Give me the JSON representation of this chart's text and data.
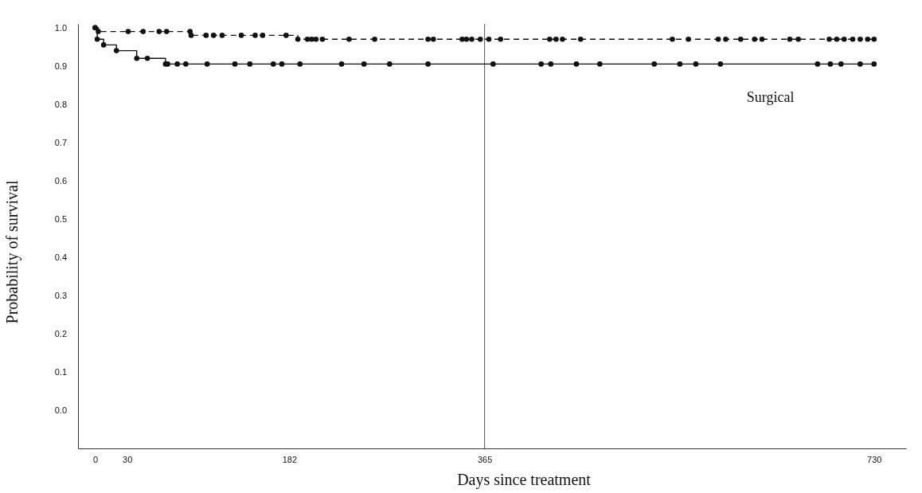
{
  "chart_data": {
    "type": "step",
    "xlabel": "Days since treatment",
    "ylabel": "Probability of survival",
    "xlim": [
      -16,
      760
    ],
    "xticks": [
      0,
      30,
      182,
      365,
      730
    ],
    "ylim": [
      -0.1,
      1.01
    ],
    "yticks": [
      {
        "value": 0,
        "label": "0.0"
      },
      0.1,
      0.2,
      0.3,
      0.4,
      0.5,
      0.6,
      0.7,
      0.8,
      0.9,
      {
        "value": 1,
        "label": "1.0"
      }
    ],
    "grid": false,
    "legend": false,
    "marker": "circle",
    "ref_lines": [
      {
        "axis": "x",
        "value": 365,
        "color": "#555555"
      }
    ],
    "series": [
      {
        "color": "#111111",
        "line_style": "dashed",
        "x": [
          0,
          3,
          31,
          45,
          60,
          67,
          89,
          90,
          104,
          111,
          119,
          137,
          150,
          157,
          179,
          190,
          199,
          203,
          207,
          213,
          238,
          262,
          312,
          317,
          344,
          348,
          353,
          361,
          369,
          380,
          426,
          432,
          438,
          455,
          541,
          556,
          584,
          591,
          605,
          618,
          625,
          651,
          659,
          688,
          695,
          702,
          710,
          717,
          724,
          730
        ],
        "values": [
          1.0,
          0.99,
          0.99,
          0.99,
          0.99,
          0.99,
          0.99,
          0.98,
          0.98,
          0.98,
          0.98,
          0.98,
          0.98,
          0.98,
          0.98,
          0.97,
          0.97,
          0.97,
          0.97,
          0.97,
          0.97,
          0.97,
          0.97,
          0.97,
          0.97,
          0.97,
          0.97,
          0.97,
          0.97,
          0.97,
          0.97,
          0.97,
          0.97,
          0.97,
          0.97,
          0.97,
          0.97,
          0.97,
          0.97,
          0.97,
          0.97,
          0.97,
          0.97,
          0.97,
          0.97,
          0.97,
          0.97,
          0.97,
          0.97,
          0.97
        ]
      },
      {
        "name": "Surgical",
        "color": "#111111",
        "line_style": "solid",
        "x": [
          0,
          2,
          8,
          20,
          39,
          49,
          66,
          68,
          77,
          85,
          105,
          131,
          145,
          167,
          175,
          192,
          231,
          252,
          276,
          312,
          373,
          418,
          427,
          451,
          473,
          524,
          548,
          563,
          586,
          677,
          689,
          699,
          717,
          730
        ],
        "values": [
          1.0,
          0.97,
          0.955,
          0.94,
          0.92,
          0.92,
          0.905,
          0.905,
          0.905,
          0.905,
          0.905,
          0.905,
          0.905,
          0.905,
          0.905,
          0.905,
          0.905,
          0.905,
          0.905,
          0.905,
          0.905,
          0.905,
          0.905,
          0.905,
          0.905,
          0.905,
          0.905,
          0.905,
          0.905,
          0.905,
          0.905,
          0.905,
          0.905,
          0.905
        ]
      }
    ]
  }
}
